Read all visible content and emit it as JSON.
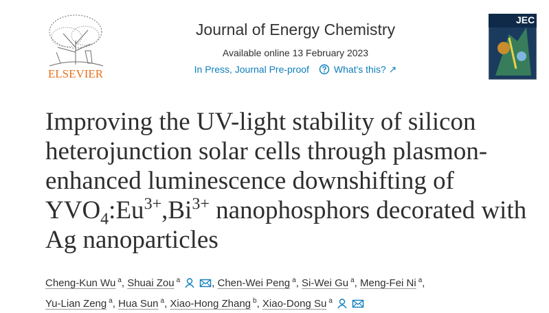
{
  "header": {
    "publisher": "ELSEVIER",
    "journal": "Journal of Energy Chemistry",
    "available": "Available online 13 February 2023",
    "status": "In Press, Journal Pre-proof",
    "help_link": "What's this? ↗",
    "cover_label": "JEC"
  },
  "title": {
    "part1": "Improving the UV-light stability of silicon heterojunction solar cells through plasmon-enhanced luminescence downshifting of YVO",
    "sub1": "4",
    "part2": ":Eu",
    "sup1": "3+",
    "part3": ",Bi",
    "sup2": "3+",
    "part4": " nanophosphors decorated with Ag nanoparticles"
  },
  "authors": {
    "separator": ",",
    "list": [
      {
        "name": "Cheng-Kun Wu",
        "affiliation": "a",
        "corresponding": false
      },
      {
        "name": "Shuai Zou",
        "affiliation": "a",
        "corresponding": true
      },
      {
        "name": "Chen-Wei Peng",
        "affiliation": "a",
        "corresponding": false
      },
      {
        "name": "Si-Wei Gu",
        "affiliation": "a",
        "corresponding": false
      },
      {
        "name": "Meng-Fei Ni",
        "affiliation": "a",
        "corresponding": false
      },
      {
        "name": "Yu-Lian Zeng",
        "affiliation": "a",
        "corresponding": false
      },
      {
        "name": "Hua Sun",
        "affiliation": "a",
        "corresponding": false
      },
      {
        "name": "Xiao-Hong Zhang",
        "affiliation": "b",
        "corresponding": false
      },
      {
        "name": "Xiao-Dong Su",
        "affiliation": "a",
        "corresponding": true
      }
    ]
  }
}
